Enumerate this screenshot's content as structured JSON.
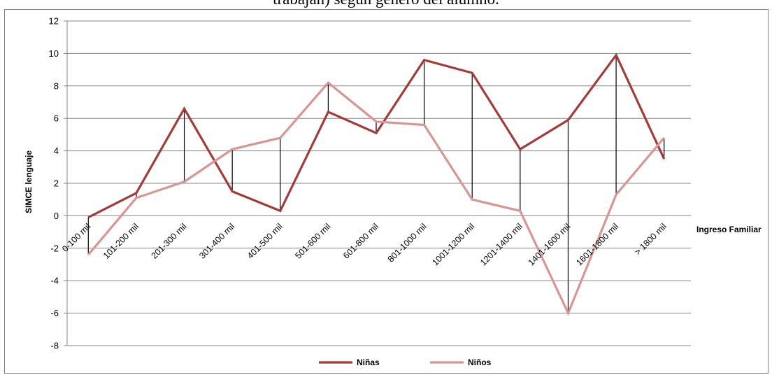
{
  "title_fragment": "trabajan) según género del alumno.",
  "chart_data": {
    "type": "line",
    "categories": [
      "0-100 mil",
      "101-200 mil",
      "201-300 mil",
      "301-400 mil",
      "401-500 mil",
      "501-600 mil",
      "601-800 mil",
      "801-1000 mil",
      "1001-1200 mil",
      "1201-1400 mil",
      "1401-1600 mil",
      "1601-1800 mil",
      "> 1800 mil"
    ],
    "series": [
      {
        "name": "Niñas",
        "color": "#A23B3A",
        "values": [
          -0.1,
          1.4,
          6.6,
          1.5,
          0.3,
          6.4,
          5.1,
          9.6,
          8.8,
          4.1,
          5.9,
          9.9,
          3.5
        ]
      },
      {
        "name": "Niños",
        "color": "#D99594",
        "values": [
          -2.4,
          1.1,
          2.1,
          4.1,
          4.8,
          8.2,
          5.8,
          5.6,
          1.0,
          0.3,
          -6.0,
          1.3,
          4.8
        ]
      }
    ],
    "xlabel": "Ingreso Familiar",
    "ylabel": "SIMCE lenguaje",
    "ylim": [
      -8,
      12
    ],
    "yticks": [
      12,
      10,
      8,
      6,
      4,
      2,
      0,
      -2,
      -4,
      -6,
      -8
    ],
    "grid": true,
    "high_low_lines": true,
    "legend_position": "bottom"
  }
}
